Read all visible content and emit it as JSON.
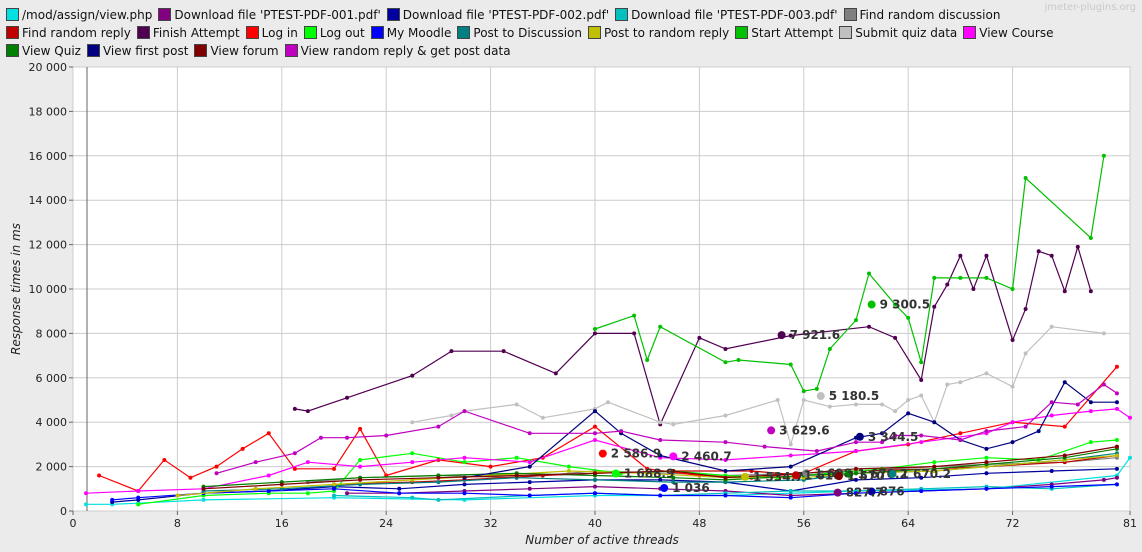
{
  "watermark": "jmeter-plugins.org",
  "chart_data": {
    "type": "line",
    "xlabel": "Number of active threads",
    "ylabel": "Response times in ms",
    "xlim": [
      0,
      81
    ],
    "ylim": [
      0,
      20000
    ],
    "x_ticks": [
      "0",
      "8",
      "16",
      "24",
      "32",
      "40",
      "48",
      "56",
      "64",
      "72",
      "81"
    ],
    "y_ticks": [
      "0",
      "2 000",
      "4 000",
      "6 000",
      "8 000",
      "10 000",
      "12 000",
      "14 000",
      "16 000",
      "18 000",
      "20 000"
    ],
    "grid": true,
    "legend_position": "top",
    "series": [
      {
        "name": "/mod/assign/view.php",
        "color": "#00e0e0",
        "x": [
          1,
          3,
          5,
          10,
          20,
          30,
          40,
          50,
          60,
          70,
          80,
          81
        ],
        "y": [
          300,
          300,
          350,
          500,
          600,
          500,
          700,
          700,
          900,
          1000,
          1600,
          2400
        ]
      },
      {
        "name": "Download file 'PTEST-PDF-001.pdf'",
        "color": "#800080",
        "x": [
          21,
          25,
          30,
          35,
          40,
          45,
          50,
          55,
          60,
          65,
          70,
          75,
          79,
          80
        ],
        "y": [
          800,
          800,
          900,
          1000,
          1100,
          1000,
          900,
          700,
          800,
          900,
          1000,
          1200,
          1400,
          1500
        ]
      },
      {
        "name": "Download file 'PTEST-PDF-002.pdf'",
        "color": "#0000a0",
        "x": [
          3,
          5,
          10,
          15,
          20,
          25,
          30,
          35,
          40,
          45,
          50,
          55,
          60,
          65,
          70,
          75,
          80
        ],
        "y": [
          400,
          500,
          800,
          900,
          1100,
          1000,
          1200,
          1300,
          1400,
          1400,
          1300,
          900,
          1400,
          1500,
          1700,
          1800,
          1900
        ]
      },
      {
        "name": "Download file 'PTEST-PDF-003.pdf'",
        "color": "#00c0c0",
        "x": [
          20,
          26,
          28,
          35,
          40,
          45,
          50,
          55,
          60,
          65,
          70,
          75,
          80
        ],
        "y": [
          700,
          600,
          500,
          700,
          800,
          700,
          800,
          900,
          900,
          1000,
          1100,
          1000,
          1200
        ]
      },
      {
        "name": "Find random discussion",
        "color": "#808080",
        "x": [
          18,
          22,
          28,
          34,
          40,
          46,
          50,
          56,
          60,
          66,
          70,
          76,
          80
        ],
        "y": [
          1300,
          1500,
          1600,
          1500,
          1800,
          1700,
          1600,
          1700,
          1800,
          2000,
          2100,
          2200,
          2400
        ]
      },
      {
        "name": "Find random reply",
        "color": "#c00000",
        "x": [
          20,
          26,
          30,
          36,
          40,
          46,
          52,
          56,
          60,
          66,
          70,
          76,
          80
        ],
        "y": [
          1200,
          1300,
          1400,
          1600,
          1700,
          1800,
          1800,
          1600,
          1800,
          1900,
          2000,
          2200,
          2500
        ]
      },
      {
        "name": "Finish Attempt",
        "color": "#500050",
        "x": [
          17,
          18,
          21,
          26,
          29,
          33,
          37,
          40,
          43,
          45,
          48,
          50,
          55,
          61,
          63,
          65,
          66,
          67,
          68,
          69,
          70,
          72,
          73,
          74,
          75,
          76,
          77,
          78
        ],
        "y": [
          4600,
          4500,
          5100,
          6100,
          7200,
          7200,
          6200,
          8000,
          8000,
          3900,
          7800,
          7300,
          7900,
          8300,
          7800,
          5900,
          9200,
          10200,
          11500,
          10000,
          11500,
          7700,
          9100,
          11700,
          11500,
          9900,
          11900,
          9900
        ]
      },
      {
        "name": "Log in",
        "color": "#ff0000",
        "x": [
          2,
          5,
          7,
          9,
          11,
          13,
          15,
          17,
          20,
          22,
          24,
          28,
          32,
          36,
          40,
          44,
          48,
          52,
          56,
          60,
          64,
          68,
          72,
          76,
          80
        ],
        "y": [
          1600,
          900,
          2300,
          1500,
          2000,
          2800,
          3500,
          1900,
          1900,
          3700,
          1600,
          2300,
          2000,
          2400,
          3800,
          1900,
          1600,
          1500,
          1700,
          2700,
          3000,
          3500,
          4000,
          3800,
          6500
        ]
      },
      {
        "name": "Log out",
        "color": "#00ff00",
        "x": [
          5,
          10,
          15,
          18,
          20,
          22,
          26,
          30,
          34,
          38,
          42,
          46,
          50,
          54,
          58,
          62,
          66,
          70,
          74,
          78,
          80
        ],
        "y": [
          300,
          700,
          800,
          800,
          900,
          2300,
          2600,
          2200,
          2400,
          2000,
          1700,
          1800,
          1600,
          1500,
          1700,
          1900,
          2200,
          2400,
          2300,
          3100,
          3200
        ]
      },
      {
        "name": "My Moodle",
        "color": "#0000ff",
        "x": [
          3,
          5,
          10,
          15,
          20,
          25,
          30,
          35,
          40,
          45,
          50,
          55,
          60,
          65,
          70,
          75,
          80
        ],
        "y": [
          500,
          600,
          800,
          900,
          1000,
          800,
          800,
          700,
          800,
          700,
          700,
          600,
          800,
          900,
          1000,
          1100,
          1200
        ]
      },
      {
        "name": "Post to Discussion",
        "color": "#008080",
        "x": [
          10,
          16,
          22,
          28,
          34,
          40,
          46,
          50,
          56,
          60,
          66,
          70,
          76,
          80
        ],
        "y": [
          900,
          1000,
          1200,
          1300,
          1500,
          1400,
          1300,
          1300,
          1400,
          1700,
          1800,
          2000,
          2300,
          2600
        ]
      },
      {
        "name": "Post to random reply",
        "color": "#c0c000",
        "x": [
          8,
          14,
          20,
          26,
          32,
          38,
          44,
          50,
          56,
          60,
          66,
          70,
          76,
          80
        ],
        "y": [
          700,
          1000,
          1200,
          1400,
          1600,
          1800,
          1700,
          1500,
          1500,
          1700,
          1800,
          2000,
          2300,
          2500
        ]
      },
      {
        "name": "Start Attempt",
        "color": "#00c000",
        "x": [
          40,
          43,
          44,
          45,
          50,
          51,
          55,
          56,
          57,
          58,
          60,
          61,
          63,
          64,
          65,
          66,
          68,
          70,
          72,
          73,
          78,
          79
        ],
        "y": [
          8200,
          8800,
          6800,
          8300,
          6700,
          6800,
          6600,
          5400,
          5500,
          7300,
          8600,
          10700,
          9300,
          8700,
          6700,
          10500,
          10500,
          10500,
          10000,
          15000,
          12300,
          16000
        ]
      },
      {
        "name": "Submit quiz data",
        "color": "#c0c0c0",
        "x": [
          26,
          29,
          30,
          34,
          36,
          40,
          41,
          45,
          46,
          50,
          54,
          55,
          56,
          58,
          60,
          62,
          63,
          64,
          65,
          66,
          67,
          68,
          70,
          72,
          73,
          75,
          79
        ],
        "y": [
          4000,
          4300,
          4500,
          4800,
          4200,
          4600,
          4900,
          4000,
          3900,
          4300,
          5000,
          3000,
          5000,
          4700,
          4800,
          4800,
          4500,
          5000,
          5200,
          4000,
          5700,
          5800,
          6200,
          5600,
          7100,
          8300,
          8000
        ]
      },
      {
        "name": "View Course",
        "color": "#ff00ff",
        "x": [
          1,
          5,
          10,
          15,
          18,
          22,
          26,
          30,
          35,
          40,
          45,
          50,
          55,
          60,
          65,
          70,
          72,
          75,
          78,
          80,
          81
        ],
        "y": [
          800,
          900,
          1000,
          1600,
          2200,
          2000,
          2200,
          2400,
          2200,
          3200,
          2400,
          2300,
          2500,
          2700,
          3100,
          3500,
          4000,
          4300,
          4500,
          4600,
          4200
        ]
      },
      {
        "name": "View Quiz",
        "color": "#008000",
        "x": [
          10,
          16,
          22,
          28,
          34,
          40,
          46,
          50,
          56,
          60,
          66,
          70,
          76,
          80
        ],
        "y": [
          1100,
          1300,
          1500,
          1600,
          1700,
          1600,
          1500,
          1400,
          1600,
          1700,
          1900,
          2100,
          2400,
          2800
        ]
      },
      {
        "name": "View first post",
        "color": "#000080",
        "x": [
          30,
          35,
          40,
          42,
          45,
          50,
          55,
          60,
          62,
          64,
          66,
          68,
          70,
          72,
          74,
          76,
          78,
          80
        ],
        "y": [
          1500,
          2000,
          4500,
          3500,
          2500,
          1800,
          2000,
          3300,
          3500,
          4400,
          4000,
          3200,
          2800,
          3100,
          3600,
          5800,
          4900,
          4900
        ]
      },
      {
        "name": "View forum",
        "color": "#800000",
        "x": [
          10,
          16,
          22,
          28,
          34,
          40,
          46,
          50,
          56,
          60,
          66,
          70,
          76,
          80
        ],
        "y": [
          1000,
          1200,
          1400,
          1500,
          1600,
          1700,
          1800,
          1500,
          1700,
          1900,
          2000,
          2200,
          2500,
          2900
        ]
      },
      {
        "name": "View random reply & get post data",
        "color": "#c000c0",
        "x": [
          11,
          14,
          17,
          19,
          21,
          24,
          28,
          30,
          35,
          40,
          42,
          45,
          50,
          53,
          57,
          60,
          62,
          63,
          65,
          68,
          70,
          73,
          75,
          77,
          79,
          80
        ],
        "y": [
          1700,
          2200,
          2600,
          3300,
          3300,
          3400,
          3800,
          4500,
          3500,
          3500,
          3600,
          3200,
          3100,
          2900,
          2700,
          3100,
          3100,
          3400,
          3400,
          3200,
          3600,
          3800,
          4900,
          4800,
          5700,
          5300
        ]
      }
    ],
    "annotations": [
      {
        "text": "7 921.6",
        "x": 54.3,
        "y": 7921.6,
        "color": "#500050"
      },
      {
        "text": "9 300.5",
        "x": 61.2,
        "y": 9300.5,
        "color": "#00c000"
      },
      {
        "text": "5 180.5",
        "x": 57.3,
        "y": 5180.5,
        "color": "#c0c0c0"
      },
      {
        "text": "3 629.6",
        "x": 53.5,
        "y": 3629.6,
        "color": "#c000c0"
      },
      {
        "text": "3 344.5",
        "x": 60.3,
        "y": 3344.5,
        "color": "#000080"
      },
      {
        "text": "2 586.9",
        "x": 40.6,
        "y": 2586.9,
        "color": "#ff0000"
      },
      {
        "text": "2 460.7",
        "x": 46.0,
        "y": 2460.7,
        "color": "#ff00ff"
      },
      {
        "text": "1 688.9",
        "x": 41.6,
        "y": 1688.9,
        "color": "#00ff00"
      },
      {
        "text": "1 534.7",
        "x": 51.5,
        "y": 1534.7,
        "color": "#c0c000"
      },
      {
        "text": "1 698",
        "x": 56.2,
        "y": 1698,
        "color": "#808080"
      },
      {
        "text": "1 670.2",
        "x": 59.5,
        "y": 1670.2,
        "color": "#008000"
      },
      {
        "text": "1 610",
        "x": 55.4,
        "y": 1610,
        "color": "#c00000"
      },
      {
        "text": "1 570",
        "x": 58.7,
        "y": 1570,
        "color": "#800000"
      },
      {
        "text": "1 670.2",
        "x": 62.8,
        "y": 1670.2,
        "color": "#008080"
      },
      {
        "text": "1 036",
        "x": 45.3,
        "y": 1036,
        "color": "#0000ff"
      },
      {
        "text": "876",
        "x": 61.2,
        "y": 876,
        "color": "#0000a0"
      },
      {
        "text": "827.7",
        "x": 58.6,
        "y": 827.7,
        "color": "#800080"
      }
    ]
  }
}
